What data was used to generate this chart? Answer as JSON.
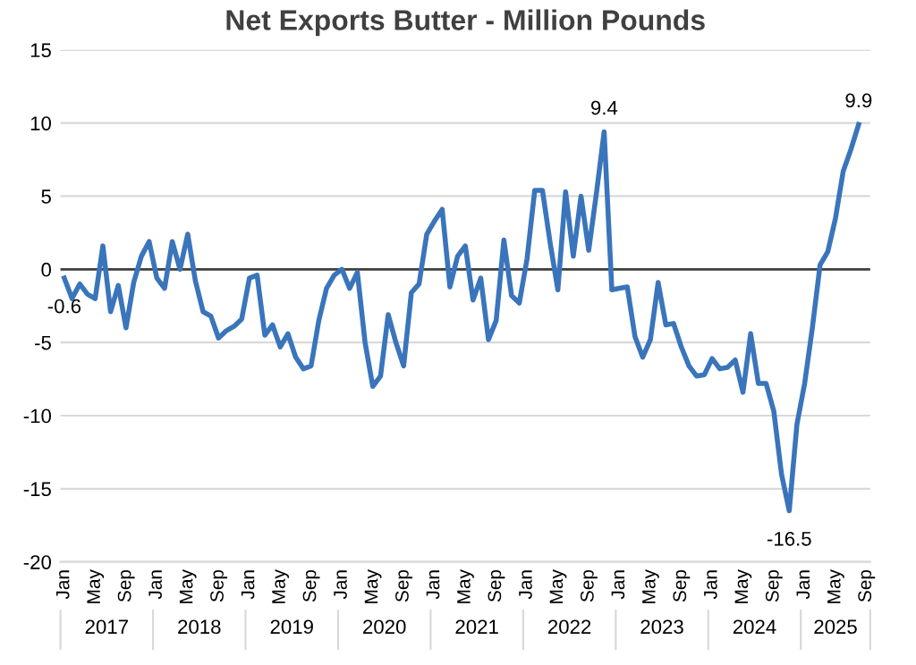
{
  "chart_data": {
    "type": "line",
    "title": "Net Exports Butter - Million Pounds",
    "categories": [
      "Jan",
      null,
      null,
      null,
      "May",
      null,
      null,
      null,
      "Sep",
      null,
      null,
      null,
      "Jan",
      null,
      null,
      null,
      "May",
      null,
      null,
      null,
      "Sep",
      null,
      null,
      null,
      "Jan",
      null,
      null,
      null,
      "May",
      null,
      null,
      null,
      "Sep",
      null,
      null,
      null,
      "Jan",
      null,
      null,
      null,
      "May",
      null,
      null,
      null,
      "Sep",
      null,
      null,
      null,
      "Jan",
      null,
      null,
      null,
      "May",
      null,
      null,
      null,
      "Sep",
      null,
      null,
      null,
      "Jan",
      null,
      null,
      null,
      "May",
      null,
      null,
      null,
      "Sep",
      null,
      null,
      null,
      "Jan",
      null,
      null,
      null,
      "May",
      null,
      null,
      null,
      "Sep",
      null,
      null,
      null,
      "Jan",
      null,
      null,
      null,
      "May",
      null,
      null,
      null,
      "Sep",
      null,
      null,
      null,
      "Jan",
      null,
      null,
      null,
      "May",
      null,
      null,
      null,
      "Sep"
    ],
    "series": [
      {
        "color": "#3a75bc",
        "values": [
          -0.6,
          -2.0,
          -1.0,
          -1.7,
          -2.0,
          1.6,
          -2.9,
          -1.1,
          -4.0,
          -0.9,
          0.9,
          1.9,
          -0.6,
          -1.3,
          1.9,
          0,
          2.4,
          -0.8,
          -2.9,
          -3.2,
          -4.7,
          -4.2,
          -3.9,
          -3.4,
          -0.6,
          -0.4,
          -4.5,
          -3.8,
          -5.3,
          -4.4,
          -6.0,
          -6.8,
          -6.6,
          -3.5,
          -1.3,
          -0.4,
          0,
          -1.3,
          -0.2,
          -5.0,
          -8.0,
          -7.3,
          -3.1,
          -5.0,
          -6.6,
          -1.6,
          -1.0,
          2.4,
          3.3,
          4.1,
          -1.2,
          0.9,
          1.6,
          -2.1,
          -0.6,
          -4.8,
          -3.5,
          2.0,
          -1.8,
          -2.3,
          0.7,
          5.4,
          5.4,
          1.8,
          -1.4,
          5.3,
          0.9,
          5.0,
          1.3,
          5.2,
          9.4,
          -1.4,
          -1.3,
          -1.2,
          -4.6,
          -6.0,
          -4.8,
          -0.9,
          -3.8,
          -3.7,
          -5.3,
          -6.6,
          -7.3,
          -7.2,
          -6.1,
          -6.8,
          -6.7,
          -6.2,
          -8.4,
          -4.4,
          -7.8,
          -7.8,
          -9.7,
          -14.0,
          -16.5,
          -10.6,
          -7.8,
          -4.0,
          0.3,
          1.2,
          3.5,
          6.7,
          8.2,
          9.9,
          null
        ],
        "value_labels": [
          "-0.6",
          null,
          null,
          null,
          null,
          null,
          null,
          null,
          null,
          null,
          null,
          null,
          null,
          null,
          null,
          null,
          null,
          null,
          null,
          null,
          null,
          null,
          null,
          null,
          null,
          null,
          null,
          null,
          null,
          null,
          null,
          null,
          null,
          null,
          null,
          null,
          null,
          null,
          null,
          null,
          null,
          null,
          null,
          null,
          null,
          null,
          null,
          null,
          null,
          null,
          null,
          null,
          null,
          null,
          null,
          null,
          null,
          null,
          null,
          null,
          null,
          null,
          null,
          null,
          null,
          null,
          null,
          null,
          null,
          null,
          "9.4",
          null,
          null,
          null,
          null,
          null,
          null,
          null,
          null,
          null,
          null,
          null,
          null,
          null,
          null,
          null,
          null,
          null,
          null,
          null,
          null,
          null,
          null,
          null,
          "-16.5",
          null,
          null,
          null,
          null,
          null,
          null,
          null,
          null,
          "9.9",
          null
        ]
      }
    ],
    "ylim": [
      -20,
      15
    ],
    "yticks": [
      -20,
      -15,
      -10,
      -5,
      0,
      5,
      10,
      15
    ],
    "grid": "y",
    "ref_lines": [
      {
        "axis": "y",
        "value": 0,
        "color": "#404040"
      }
    ],
    "annotations": [
      "2017",
      "2018",
      "2019",
      "2020",
      "2021",
      "2022",
      "2023",
      "2024",
      "2025"
    ]
  }
}
